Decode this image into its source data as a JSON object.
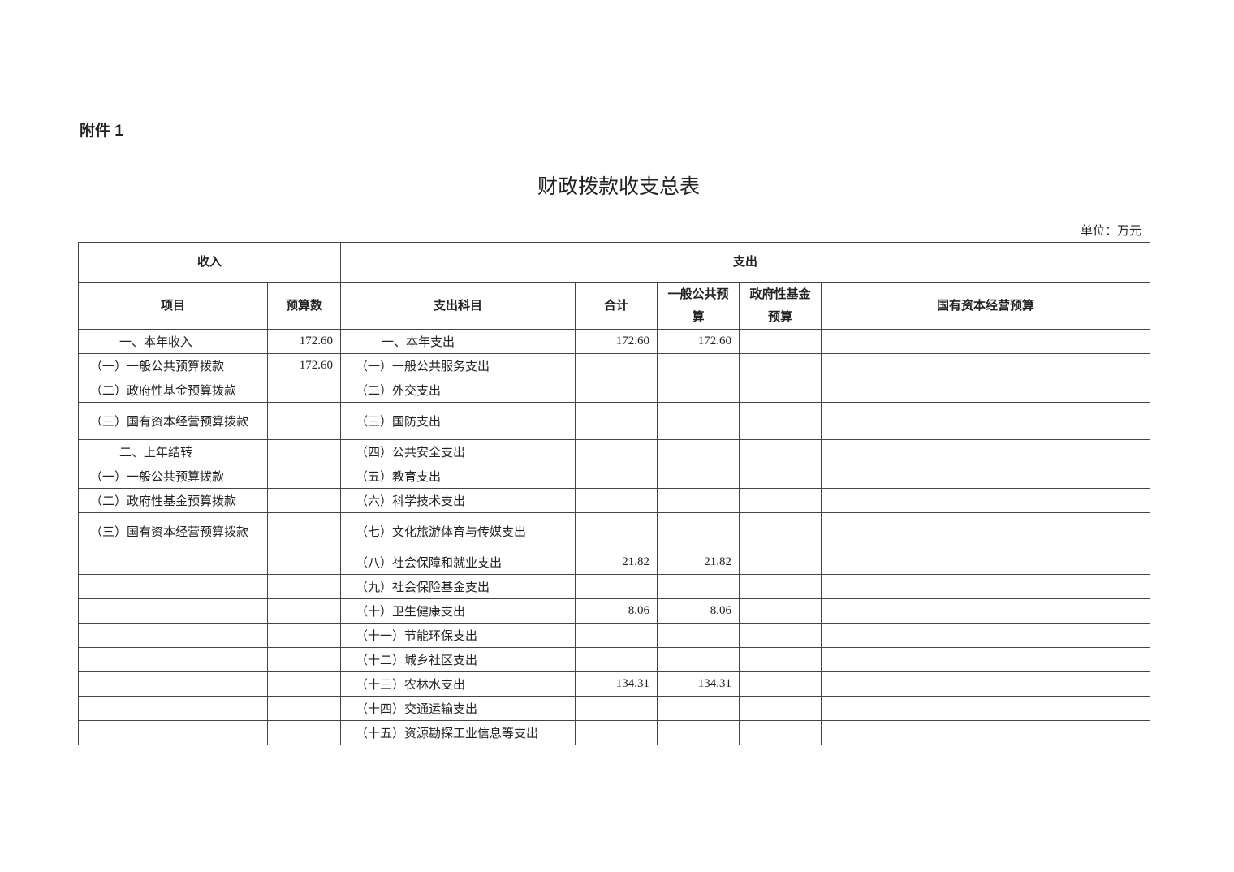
{
  "attachment_label": "附件 1",
  "title": "财政拨款收支总表",
  "unit": "单位：万元",
  "headers": {
    "income": "收入",
    "expense": "支出",
    "item": "项目",
    "budget": "预算数",
    "expense_item": "支出科目",
    "total": "合计",
    "general_public": "一般公共预算",
    "gov_fund": "政府性基金预算",
    "state_capital": "国有资本经营预算"
  },
  "rows": [
    {
      "income_item": "一、本年收入",
      "income_budget": "172.60",
      "expense_item": "一、本年支出",
      "total": "172.60",
      "general": "172.60",
      "fund": "",
      "capital": "",
      "tall": false,
      "ii": true,
      "ei": true
    },
    {
      "income_item": "（一）一般公共预算拨款",
      "income_budget": "172.60",
      "expense_item": "（一）一般公共服务支出",
      "total": "",
      "general": "",
      "fund": "",
      "capital": "",
      "tall": false
    },
    {
      "income_item": "（二）政府性基金预算拨款",
      "income_budget": "",
      "expense_item": "（二）外交支出",
      "total": "",
      "general": "",
      "fund": "",
      "capital": "",
      "tall": false
    },
    {
      "income_item": "（三）国有资本经营预算拨款",
      "income_budget": "",
      "expense_item": "（三）国防支出",
      "total": "",
      "general": "",
      "fund": "",
      "capital": "",
      "tall": true
    },
    {
      "income_item": "二、上年结转",
      "income_budget": "",
      "expense_item": "（四）公共安全支出",
      "total": "",
      "general": "",
      "fund": "",
      "capital": "",
      "tall": false,
      "ii": true
    },
    {
      "income_item": "（一）一般公共预算拨款",
      "income_budget": "",
      "expense_item": "（五）教育支出",
      "total": "",
      "general": "",
      "fund": "",
      "capital": "",
      "tall": false
    },
    {
      "income_item": "（二）政府性基金预算拨款",
      "income_budget": "",
      "expense_item": "（六）科学技术支出",
      "total": "",
      "general": "",
      "fund": "",
      "capital": "",
      "tall": false
    },
    {
      "income_item": "（三）国有资本经营预算拨款",
      "income_budget": "",
      "expense_item": "（七）文化旅游体育与传媒支出",
      "total": "",
      "general": "",
      "fund": "",
      "capital": "",
      "tall": true
    },
    {
      "income_item": "",
      "income_budget": "",
      "expense_item": "（八）社会保障和就业支出",
      "total": "21.82",
      "general": "21.82",
      "fund": "",
      "capital": "",
      "tall": false
    },
    {
      "income_item": "",
      "income_budget": "",
      "expense_item": "（九）社会保险基金支出",
      "total": "",
      "general": "",
      "fund": "",
      "capital": "",
      "tall": false
    },
    {
      "income_item": "",
      "income_budget": "",
      "expense_item": "（十）卫生健康支出",
      "total": "8.06",
      "general": "8.06",
      "fund": "",
      "capital": "",
      "tall": false
    },
    {
      "income_item": "",
      "income_budget": "",
      "expense_item": "（十一）节能环保支出",
      "total": "",
      "general": "",
      "fund": "",
      "capital": "",
      "tall": false
    },
    {
      "income_item": "",
      "income_budget": "",
      "expense_item": "（十二）城乡社区支出",
      "total": "",
      "general": "",
      "fund": "",
      "capital": "",
      "tall": false
    },
    {
      "income_item": "",
      "income_budget": "",
      "expense_item": "（十三）农林水支出",
      "total": "134.31",
      "general": "134.31",
      "fund": "",
      "capital": "",
      "tall": false
    },
    {
      "income_item": "",
      "income_budget": "",
      "expense_item": "（十四）交通运输支出",
      "total": "",
      "general": "",
      "fund": "",
      "capital": "",
      "tall": false
    },
    {
      "income_item": "",
      "income_budget": "",
      "expense_item": "（十五）资源勘探工业信息等支出",
      "total": "",
      "general": "",
      "fund": "",
      "capital": "",
      "tall": false
    }
  ]
}
